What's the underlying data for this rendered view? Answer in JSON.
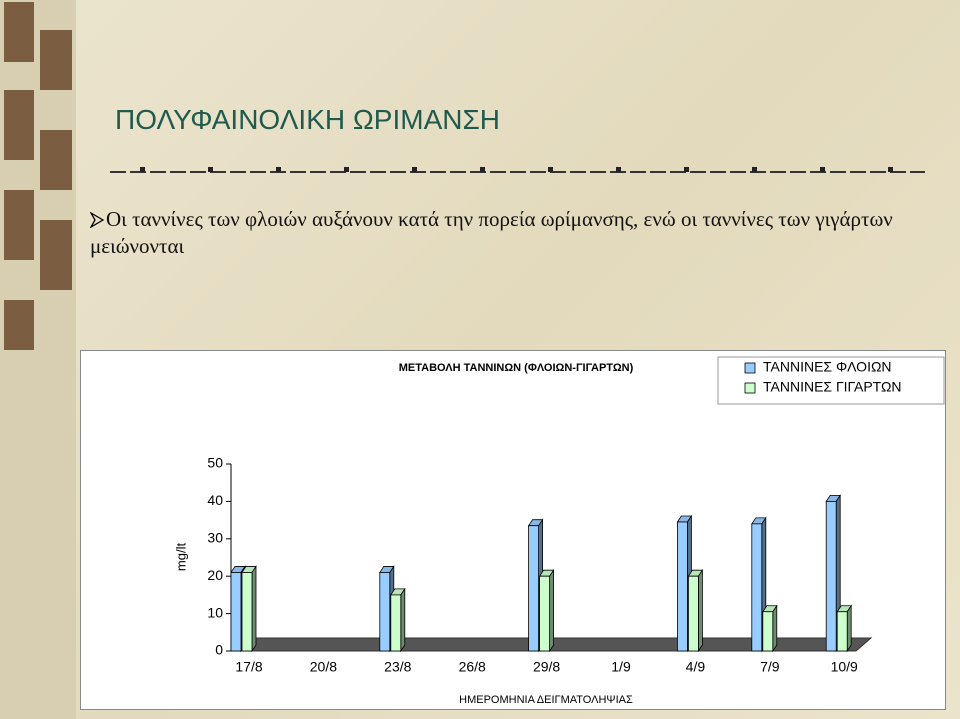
{
  "slide_title": "ΠΟΛΥΦΑΙΝΟΛΙΚΗ ΩΡΙΜΑΝΣΗ",
  "bullet": "Οι ταννίνες των φλοιών αυξάνουν κατά την πορεία ωρίμανσης, ενώ οι ταννίνες των γιγάρτων μειώνονται",
  "chart_data": {
    "type": "bar",
    "title": "ΜΕΤΑΒΟΛΗ ΤΑΝΝΙΝΩΝ (ΦΛΟΙΩΝ-ΓΙΓΑΡΤΩΝ)",
    "y_label": "mg/lt",
    "x_label": "ΗΜΕΡΟΜΗΝΙΑ ΔΕΙΓΜΑΤΟΛΗΨΙΑΣ",
    "categories": [
      "17/8",
      "20/8",
      "23/8",
      "26/8",
      "29/8",
      "1/9",
      "4/9",
      "7/9",
      "10/9"
    ],
    "series": [
      {
        "name": "ΤΑΝΝΙΝΕΣ ΦΛΟΙΩΝ",
        "color": "#99ccff",
        "values": [
          21,
          null,
          21,
          null,
          33.5,
          null,
          34.5,
          34,
          40
        ]
      },
      {
        "name": "ΤΑΝΝΙΝΕΣ ΓΙΓΑΡΤΩΝ",
        "color": "#ccffcc",
        "values": [
          21,
          null,
          15,
          null,
          20,
          null,
          20,
          10.5,
          10.5
        ]
      }
    ],
    "ylim": [
      0,
      50
    ],
    "yticks": [
      0,
      10,
      20,
      30,
      40,
      50
    ],
    "legend": "top-right"
  }
}
